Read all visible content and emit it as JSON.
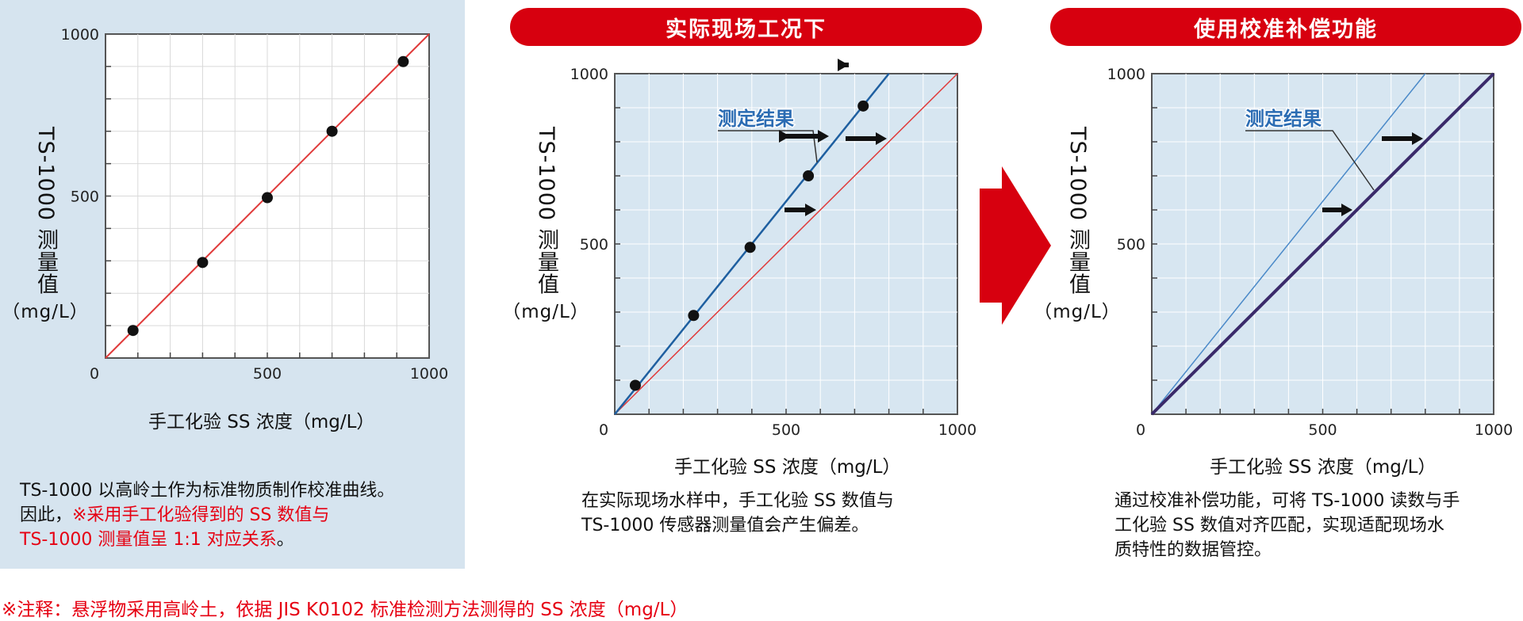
{
  "colors": {
    "accent_red": "#d7000f",
    "note_red": "#e60012",
    "line_blue": "#1e5fa0",
    "line_red": "#e03a3a",
    "panel_bg": "#d6e4ef",
    "plot_bg": "#d7e6f1"
  },
  "panel_titles": {
    "field": "实际现场工况下",
    "calibrated": "使用校准补偿功能"
  },
  "axis_common": {
    "ylabel_main": "TS-1000 测量值",
    "ylabel_unit": "（mg/L）",
    "xlabel": "手工化验 SS 浓度（mg/L）"
  },
  "annotation": {
    "measured_result": "测定结果"
  },
  "descriptions": {
    "left_line1": "TS-1000 以高岭土作为标准物质制作校准曲线。",
    "left_line2a": "因此，",
    "left_line2b": "※采用手工化验得到的 SS 数值与",
    "left_line3a": "TS-1000 测量值呈 1:1 对应关系",
    "left_line3b": "。",
    "middle_line1": "在实际现场水样中，手工化验 SS 数值与",
    "middle_line2": "TS-1000 传感器测量值会产生偏差。",
    "right_line1": "通过校准补偿功能，可将 TS-1000 读数与手",
    "right_line2": "工化验 SS 数值对齐匹配，实现适配现场水",
    "right_line3": "质特性的数据管控。"
  },
  "footnote": "※注释：悬浮物采用高岭土，依据 JIS K0102 标准检测方法测得的 SS 浓度（mg/L）",
  "chart_data": [
    {
      "type": "scatter",
      "title": "",
      "xlabel": "手工化验 SS 浓度（mg/L）",
      "ylabel": "TS-1000 测量值（mg/L）",
      "xlim": [
        0,
        1000
      ],
      "ylim": [
        0,
        1000
      ],
      "xticks": [
        "0",
        "500",
        "1000"
      ],
      "yticks": [
        "1000",
        "500"
      ],
      "series": [
        {
          "type": "line",
          "x": [
            0,
            1000
          ],
          "y": [
            0,
            1000
          ]
        },
        {
          "type": "scatter",
          "x": [
            85,
            300,
            500,
            700,
            920
          ],
          "y": [
            85,
            295,
            495,
            700,
            915
          ]
        }
      ]
    },
    {
      "type": "scatter",
      "title": "实际现场工况下",
      "xlabel": "手工化验 SS 浓度（mg/L）",
      "ylabel": "TS-1000 测量值（mg/L）",
      "xlim": [
        0,
        1000
      ],
      "ylim": [
        0,
        1000
      ],
      "xticks": [
        "0",
        "500",
        "1000"
      ],
      "yticks": [
        "1000",
        "500"
      ],
      "series": [
        {
          "type": "line",
          "x": [
            0,
            1000
          ],
          "y": [
            0,
            1000
          ]
        },
        {
          "type": "line",
          "x": [
            0,
            800
          ],
          "y": [
            0,
            1000
          ]
        },
        {
          "type": "scatter",
          "x": [
            60,
            230,
            395,
            565,
            725
          ],
          "y": [
            85,
            290,
            490,
            700,
            905
          ]
        }
      ]
    },
    {
      "type": "line",
      "title": "使用校准补偿功能",
      "xlabel": "手工化验 SS 浓度（mg/L）",
      "ylabel": "TS-1000 测量值（mg/L）",
      "xlim": [
        0,
        1000
      ],
      "ylim": [
        0,
        1000
      ],
      "xticks": [
        "0",
        "500",
        "1000"
      ],
      "yticks": [
        "1000",
        "500"
      ],
      "series": [
        {
          "type": "line",
          "x": [
            0,
            800
          ],
          "y": [
            0,
            1000
          ]
        },
        {
          "type": "line",
          "x": [
            0,
            1000
          ],
          "y": [
            0,
            1000
          ]
        }
      ]
    }
  ]
}
